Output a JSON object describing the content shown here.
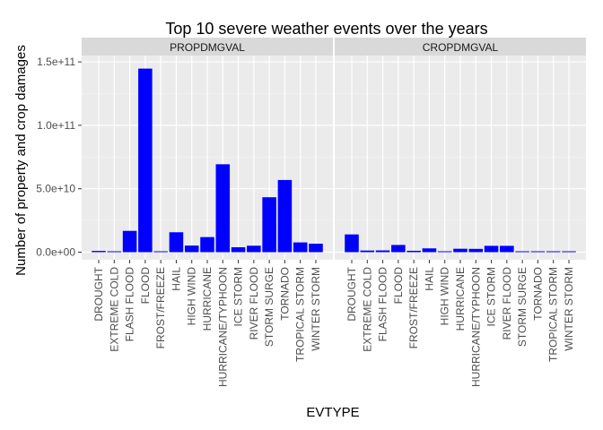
{
  "chart_data": {
    "type": "bar",
    "title": "Top 10 severe weather events over the years",
    "xlabel": "EVTYPE",
    "ylabel": "Number of property and crop damages",
    "ylim": [
      -6000000000,
      155000000000
    ],
    "y_ticks": [
      0,
      50000000000,
      100000000000,
      150000000000
    ],
    "y_tick_labels": [
      "0.0e+00",
      "5.0e+10",
      "1.0e+11",
      "1.5e+11"
    ],
    "grid": true,
    "bar_color": "#0000ff",
    "categories": [
      "DROUGHT",
      "EXTREME COLD",
      "FLASH FLOOD",
      "FLOOD",
      "FROST/FREEZE",
      "HAIL",
      "HIGH WIND",
      "HURRICANE",
      "HURRICANE/TYPHOON",
      "ICE STORM",
      "RIVER FLOOD",
      "STORM SURGE",
      "TORNADO",
      "TROPICAL STORM",
      "WINTER STORM"
    ],
    "series": [
      {
        "name": "PROPDMGVAL",
        "values": [
          1000000000,
          700000000,
          16800000000,
          144700000000,
          10000000,
          15700000000,
          5200000000,
          11900000000,
          69300000000,
          3900000000,
          5100000000,
          43300000000,
          56900000000,
          7700000000,
          6700000000
        ]
      },
      {
        "name": "CROPDMGVAL",
        "values": [
          14000000000,
          1300000000,
          1400000000,
          5700000000,
          1100000000,
          3000000000,
          600000000,
          2700000000,
          2600000000,
          5000000000,
          5000000000,
          5000,
          400000000,
          700000000,
          30000000
        ]
      }
    ]
  }
}
